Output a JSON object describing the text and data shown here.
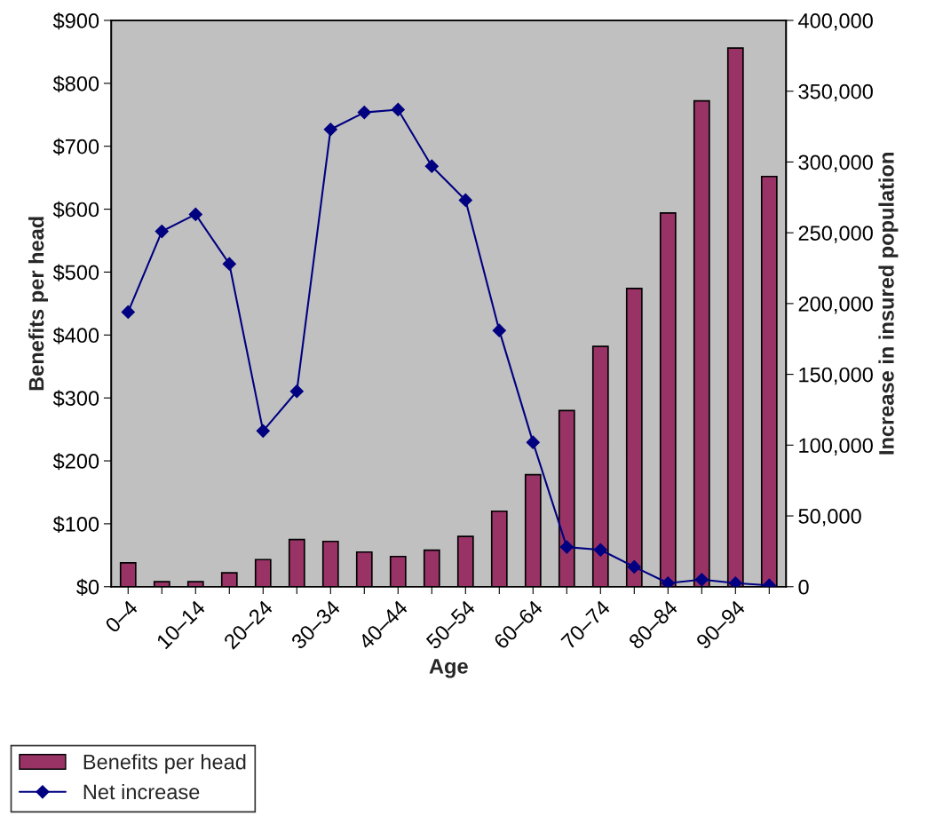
{
  "chart_data": {
    "type": "bar",
    "xlabel": "Age",
    "ylabel": "Benefits per head",
    "y2label": "Increase in insured population",
    "categories": [
      "0–4",
      null,
      "10–14",
      null,
      "20–24",
      null,
      "30–34",
      null,
      "40–44",
      null,
      "50–54",
      null,
      "60–64",
      null,
      "70–74",
      null,
      "80–84",
      null,
      "90–94",
      null
    ],
    "series": [
      {
        "name": "Benefits per head",
        "color": "#993366",
        "values": [
          38,
          8,
          8,
          22,
          43,
          75,
          72,
          55,
          48,
          58,
          80,
          120,
          178,
          280,
          382,
          474,
          594,
          772,
          856,
          652
        ]
      },
      {
        "name": "Net increase",
        "type": "line",
        "axis": "y2",
        "color": "#000080",
        "marker": "diamond",
        "values": [
          194000,
          251000,
          263000,
          228000,
          110000,
          138000,
          323000,
          335000,
          337000,
          297000,
          273000,
          181000,
          102000,
          28000,
          26000,
          14000,
          2500,
          5000,
          2500,
          1000
        ]
      }
    ],
    "ylim": [
      0,
      900
    ],
    "yticks": [
      {
        "value": 0,
        "label": "$0"
      },
      {
        "value": 100,
        "label": "$100"
      },
      {
        "value": 200,
        "label": "$200"
      },
      {
        "value": 300,
        "label": "$300"
      },
      {
        "value": 400,
        "label": "$400"
      },
      {
        "value": 500,
        "label": "$500"
      },
      {
        "value": 600,
        "label": "$600"
      },
      {
        "value": 700,
        "label": "$700"
      },
      {
        "value": 800,
        "label": "$800"
      },
      {
        "value": 900,
        "label": "$900"
      }
    ],
    "y2lim": [
      0,
      400000
    ],
    "y2ticks": [
      0,
      {
        "value": 50000,
        "label": "50,000"
      },
      {
        "value": 100000,
        "label": "100,000"
      },
      {
        "value": 150000,
        "label": "150,000"
      },
      {
        "value": 200000,
        "label": "200,000"
      },
      {
        "value": 250000,
        "label": "250,000"
      },
      {
        "value": 300000,
        "label": "300,000"
      },
      {
        "value": 350000,
        "label": "350,000"
      },
      {
        "value": 400000,
        "label": "400,000"
      }
    ],
    "grid": false,
    "legend": "bottom left"
  }
}
